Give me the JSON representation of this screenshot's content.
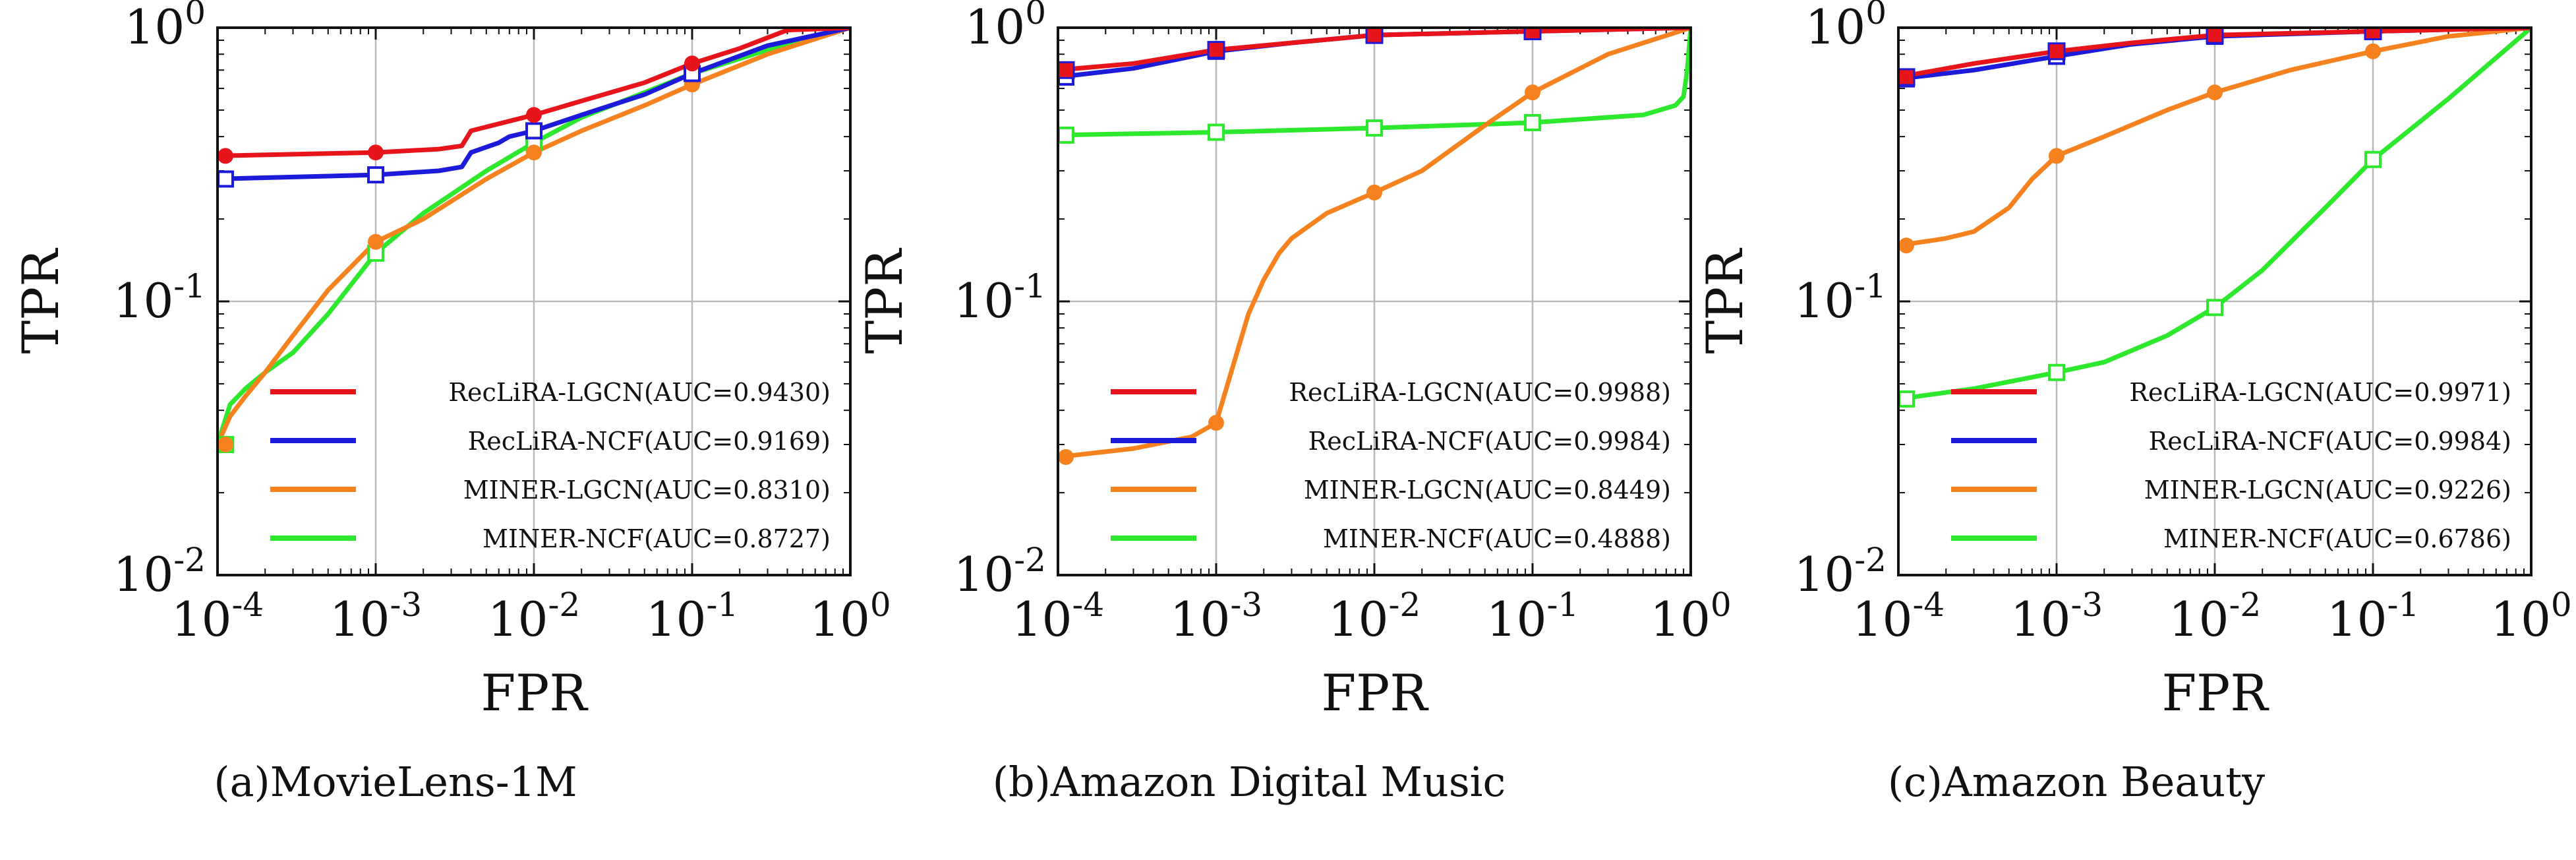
{
  "colors": {
    "red": "#e8141c",
    "blue": "#1b1bd9",
    "orange": "#f5821f",
    "green": "#2ee82e"
  },
  "chart_data": [
    {
      "type": "line",
      "caption": "(a)MovieLens-1M",
      "xlabel": "FPR",
      "ylabel": "TPR",
      "x_scale": "log",
      "y_scale": "log",
      "xlim": [
        0.0001,
        1
      ],
      "ylim": [
        0.01,
        1
      ],
      "x_ticks": [
        0.0001,
        0.001,
        0.01,
        0.1,
        1
      ],
      "x_tick_labels": [
        "10^-4",
        "10^-3",
        "10^-2",
        "10^-1",
        "10^0"
      ],
      "y_ticks": [
        0.01,
        0.1,
        1
      ],
      "y_tick_labels": [
        "10^-2",
        "10^-1",
        "10^0"
      ],
      "grid": true,
      "legend_position": "bottom-right",
      "series": [
        {
          "name": "RecLiRA-LGCN(AUC=0.9430)",
          "color": "red",
          "marker": "filled-circle",
          "x": [
            0.0001,
            0.001,
            0.0025,
            0.0035,
            0.004,
            0.01,
            0.02,
            0.05,
            0.1,
            0.2,
            0.4,
            1
          ],
          "y": [
            0.34,
            0.35,
            0.36,
            0.37,
            0.42,
            0.48,
            0.54,
            0.63,
            0.74,
            0.84,
            0.98,
            1.0
          ]
        },
        {
          "name": "RecLiRA-NCF(AUC=0.9169)",
          "color": "blue",
          "marker": "square",
          "x": [
            0.0001,
            0.001,
            0.0025,
            0.0035,
            0.004,
            0.006,
            0.007,
            0.01,
            0.02,
            0.05,
            0.1,
            0.3,
            1
          ],
          "y": [
            0.28,
            0.29,
            0.3,
            0.31,
            0.35,
            0.38,
            0.4,
            0.42,
            0.48,
            0.57,
            0.68,
            0.86,
            1.0
          ]
        },
        {
          "name": "MINER-LGCN(AUC=0.8310)",
          "color": "orange",
          "marker": "filled-circle",
          "x": [
            0.0001,
            0.00012,
            0.00015,
            0.0002,
            0.0003,
            0.0005,
            0.001,
            0.002,
            0.005,
            0.01,
            0.02,
            0.05,
            0.1,
            0.3,
            1
          ],
          "y": [
            0.03,
            0.038,
            0.045,
            0.055,
            0.075,
            0.11,
            0.165,
            0.2,
            0.28,
            0.35,
            0.42,
            0.52,
            0.62,
            0.8,
            1.0
          ]
        },
        {
          "name": "MINER-NCF(AUC=0.8727)",
          "color": "green",
          "marker": "square",
          "x": [
            0.0001,
            0.00012,
            0.00015,
            0.0002,
            0.0003,
            0.0005,
            0.001,
            0.002,
            0.005,
            0.01,
            0.02,
            0.05,
            0.1,
            0.3,
            1
          ],
          "y": [
            0.03,
            0.042,
            0.048,
            0.055,
            0.065,
            0.09,
            0.15,
            0.21,
            0.3,
            0.38,
            0.47,
            0.58,
            0.68,
            0.83,
            1.0
          ]
        }
      ]
    },
    {
      "type": "line",
      "caption": "(b)Amazon Digital Music",
      "xlabel": "FPR",
      "ylabel": "TPR",
      "x_scale": "log",
      "y_scale": "log",
      "xlim": [
        0.0001,
        1
      ],
      "ylim": [
        0.01,
        1
      ],
      "x_ticks": [
        0.0001,
        0.001,
        0.01,
        0.1,
        1
      ],
      "x_tick_labels": [
        "10^-4",
        "10^-3",
        "10^-2",
        "10^-1",
        "10^0"
      ],
      "y_ticks": [
        0.01,
        0.1,
        1
      ],
      "y_tick_labels": [
        "10^-2",
        "10^-1",
        "10^0"
      ],
      "grid": true,
      "legend_position": "bottom-right",
      "series": [
        {
          "name": "RecLiRA-LGCN(AUC=0.9988)",
          "color": "red",
          "marker": "filled-square",
          "x": [
            0.0001,
            0.0003,
            0.001,
            0.003,
            0.01,
            0.1,
            1
          ],
          "y": [
            0.7,
            0.74,
            0.83,
            0.88,
            0.94,
            0.97,
            1.0
          ]
        },
        {
          "name": "RecLiRA-NCF(AUC=0.9984)",
          "color": "blue",
          "marker": "square",
          "x": [
            0.0001,
            0.0003,
            0.001,
            0.003,
            0.01,
            0.1,
            1
          ],
          "y": [
            0.66,
            0.71,
            0.82,
            0.88,
            0.94,
            0.97,
            1.0
          ]
        },
        {
          "name": "MINER-LGCN(AUC=0.8449)",
          "color": "orange",
          "marker": "filled-circle",
          "x": [
            0.0001,
            0.0003,
            0.0007,
            0.001,
            0.0013,
            0.0016,
            0.002,
            0.0025,
            0.003,
            0.005,
            0.01,
            0.02,
            0.05,
            0.1,
            0.3,
            1
          ],
          "y": [
            0.027,
            0.029,
            0.032,
            0.036,
            0.06,
            0.09,
            0.12,
            0.15,
            0.17,
            0.21,
            0.25,
            0.3,
            0.44,
            0.58,
            0.8,
            1.0
          ]
        },
        {
          "name": "MINER-NCF(AUC=0.4888)",
          "color": "green",
          "marker": "square",
          "x": [
            0.0001,
            0.001,
            0.01,
            0.1,
            0.5,
            0.8,
            0.9,
            0.95,
            1
          ],
          "y": [
            0.405,
            0.415,
            0.43,
            0.45,
            0.48,
            0.52,
            0.56,
            0.7,
            1.0
          ]
        }
      ]
    },
    {
      "type": "line",
      "caption": "(c)Amazon Beauty",
      "xlabel": "FPR",
      "ylabel": "TPR",
      "x_scale": "log",
      "y_scale": "log",
      "xlim": [
        0.0001,
        1
      ],
      "ylim": [
        0.01,
        1
      ],
      "x_ticks": [
        0.0001,
        0.001,
        0.01,
        0.1,
        1
      ],
      "x_tick_labels": [
        "10^-4",
        "10^-3",
        "10^-2",
        "10^-1",
        "10^0"
      ],
      "y_ticks": [
        0.01,
        0.1,
        1
      ],
      "y_tick_labels": [
        "10^-2",
        "10^-1",
        "10^0"
      ],
      "grid": true,
      "legend_position": "bottom-right",
      "series": [
        {
          "name": "RecLiRA-LGCN(AUC=0.9971)",
          "color": "red",
          "marker": "filled-square",
          "x": [
            0.0001,
            0.0003,
            0.001,
            0.003,
            0.01,
            0.1,
            1
          ],
          "y": [
            0.66,
            0.74,
            0.82,
            0.88,
            0.94,
            0.97,
            1.0
          ]
        },
        {
          "name": "RecLiRA-NCF(AUC=0.9984)",
          "color": "blue",
          "marker": "square",
          "x": [
            0.0001,
            0.0003,
            0.0012,
            0.003,
            0.01,
            0.1,
            1
          ],
          "y": [
            0.65,
            0.7,
            0.8,
            0.87,
            0.93,
            0.97,
            1.0
          ]
        },
        {
          "name": "MINER-LGCN(AUC=0.9226)",
          "color": "orange",
          "marker": "filled-circle",
          "x": [
            0.0001,
            0.0002,
            0.0003,
            0.0005,
            0.0007,
            0.001,
            0.002,
            0.005,
            0.01,
            0.03,
            0.1,
            0.3,
            1
          ],
          "y": [
            0.16,
            0.17,
            0.18,
            0.22,
            0.28,
            0.34,
            0.4,
            0.5,
            0.58,
            0.7,
            0.82,
            0.93,
            1.0
          ]
        },
        {
          "name": "MINER-NCF(AUC=0.6786)",
          "color": "green",
          "marker": "square",
          "x": [
            0.0001,
            0.0003,
            0.001,
            0.002,
            0.005,
            0.01,
            0.02,
            0.05,
            0.1,
            0.3,
            1
          ],
          "y": [
            0.044,
            0.048,
            0.055,
            0.06,
            0.075,
            0.095,
            0.13,
            0.22,
            0.33,
            0.55,
            1.0
          ]
        }
      ]
    }
  ]
}
